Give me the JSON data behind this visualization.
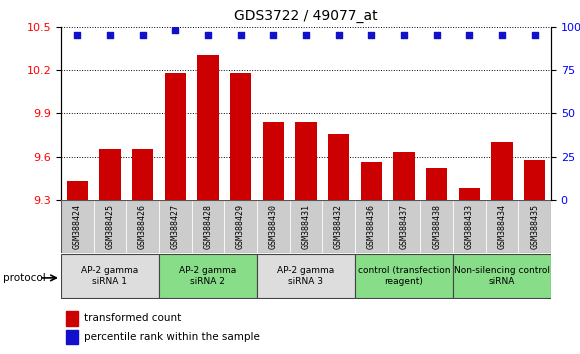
{
  "title": "GDS3722 / 49077_at",
  "samples": [
    "GSM388424",
    "GSM388425",
    "GSM388426",
    "GSM388427",
    "GSM388428",
    "GSM388429",
    "GSM388430",
    "GSM388431",
    "GSM388432",
    "GSM388436",
    "GSM388437",
    "GSM388438",
    "GSM388433",
    "GSM388434",
    "GSM388435"
  ],
  "transformed_counts": [
    9.43,
    9.65,
    9.65,
    10.18,
    10.3,
    10.18,
    9.84,
    9.84,
    9.76,
    9.56,
    9.63,
    9.52,
    9.38,
    9.7,
    9.58
  ],
  "percentile_ranks": [
    95,
    95,
    95,
    98,
    95,
    95,
    95,
    95,
    95,
    95,
    95,
    95,
    95,
    95,
    95
  ],
  "ylim_left": [
    9.3,
    10.5
  ],
  "ylim_right": [
    0,
    100
  ],
  "yticks_left": [
    9.3,
    9.6,
    9.9,
    10.2,
    10.5
  ],
  "yticks_right": [
    0,
    25,
    50,
    75,
    100
  ],
  "bar_color": "#cc0000",
  "dot_color": "#1111cc",
  "groups": [
    {
      "label": "AP-2 gamma\nsiRNA 1",
      "indices": [
        0,
        1,
        2
      ],
      "color": "#dddddd"
    },
    {
      "label": "AP-2 gamma\nsiRNA 2",
      "indices": [
        3,
        4,
        5
      ],
      "color": "#88dd88"
    },
    {
      "label": "AP-2 gamma\nsiRNA 3",
      "indices": [
        6,
        7,
        8
      ],
      "color": "#dddddd"
    },
    {
      "label": "control (transfection\nreagent)",
      "indices": [
        9,
        10,
        11
      ],
      "color": "#88dd88"
    },
    {
      "label": "Non-silencing control\nsiRNA",
      "indices": [
        12,
        13,
        14
      ],
      "color": "#88dd88"
    }
  ],
  "xlabel_protocol": "protocol",
  "legend_bar": "transformed count",
  "legend_dot": "percentile rank within the sample",
  "background_color": "#ffffff",
  "sample_bg_color": "#cccccc"
}
